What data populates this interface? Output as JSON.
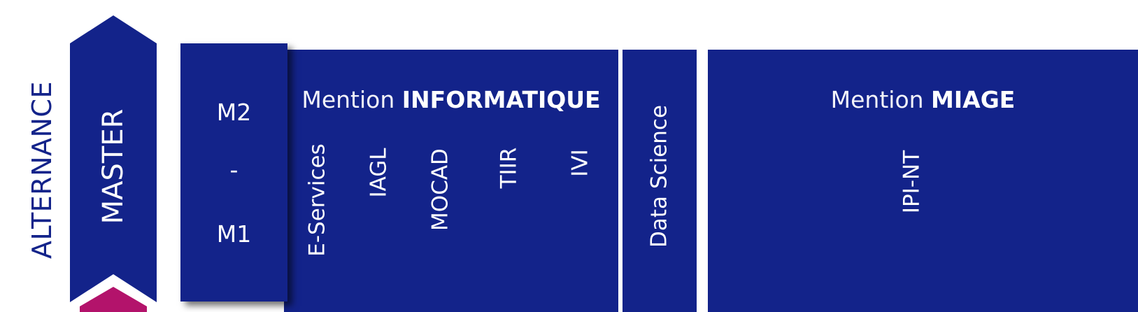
{
  "side_label": "ALTERNANCE",
  "degree_label": "MASTER",
  "levels": {
    "upper": "M2",
    "separator": "-",
    "lower": "M1"
  },
  "mentions": [
    {
      "prefix": "Mention",
      "name": "INFORMATIQUE",
      "courses": [
        "E-Services",
        "IAGL",
        "MOCAD",
        "TIIR",
        "IVI"
      ]
    },
    {
      "prefix": "",
      "name": "",
      "courses": [
        "Data Science"
      ]
    },
    {
      "prefix": "Mention",
      "name": "MIAGE",
      "courses": [
        "IPI-NT"
      ]
    }
  ],
  "colors": {
    "primary_blue": "#13238a",
    "accent_magenta": "#b3136b",
    "background": "#ffffff"
  }
}
